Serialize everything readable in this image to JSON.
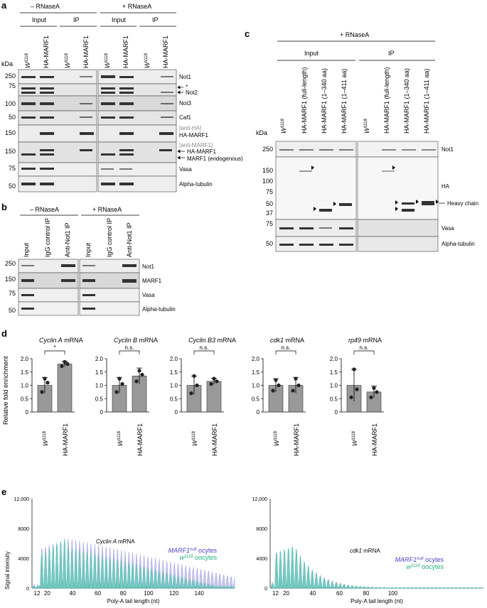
{
  "panels": {
    "a": "a",
    "b": "b",
    "c": "c",
    "d": "d",
    "e": "e"
  },
  "panel_a": {
    "minus_rnase": "– RNaseA",
    "plus_rnase": "+ RNaseA",
    "input": "Input",
    "ip": "IP",
    "lane_w": "W",
    "lane_w_sup": "1118",
    "lane_ha": "HA-MARF1",
    "kda": "kDa",
    "mw": [
      "250",
      "75",
      "100",
      "50",
      "150",
      "150",
      "75",
      "50"
    ],
    "rows": [
      "Not1",
      "*",
      "Not2",
      "Not3",
      "Caf1",
      "[anti-HA]",
      "HA-MARF1",
      "[anti-MARF1]",
      "HA-MARF1",
      "MARF1 (endogenous)",
      "Vasa",
      "Alpha-tubulin"
    ]
  },
  "panel_b": {
    "minus_rnase": "– RNaseA",
    "plus_rnase": "+ RNaseA",
    "lanes": [
      "Input",
      "IgG control IP",
      "Anti-Not1 IP"
    ],
    "mw": [
      "250",
      "150",
      "75",
      "50"
    ],
    "rows": [
      "Not1",
      "MARF1",
      "Vasa",
      "Alpha-tubulin"
    ]
  },
  "panel_c": {
    "plus_rnase": "+ RNaseA",
    "input": "Input",
    "ip": "IP",
    "lanes": [
      "W",
      "HA-MARF1 (full-length)",
      "HA-MARF1 (1–340 aa)",
      "HA-MARF1 (1–411 aa)"
    ],
    "lane_sup": "1118",
    "kda": "kDa",
    "mw": [
      "250",
      "150",
      "100",
      "75",
      "50",
      "37",
      "75",
      "50"
    ],
    "rows": [
      "Not1",
      "HA",
      "Heavy chain",
      "Vasa",
      "Alpha-tubulin"
    ]
  },
  "panel_d": {
    "ylabel": "Relative fold enrichment",
    "mrna": "mRNA",
    "x_w": "W",
    "x_sup": "1118",
    "x_ha": "HA-MARF1",
    "yticks": [
      "0",
      "0.5",
      "1.0",
      "1.5",
      "2.0"
    ],
    "chart_data": [
      {
        "type": "bar",
        "title": "Cyclin A",
        "categories": [
          "W1118",
          "HA-MARF1"
        ],
        "values": [
          1.0,
          1.8
        ],
        "errors": [
          0.3,
          0.1
        ],
        "points": [
          [
            0.75,
            1.1,
            1.25
          ],
          [
            1.72,
            1.8,
            1.88
          ]
        ],
        "significance": "*",
        "ylim": [
          0,
          2.0
        ]
      },
      {
        "type": "bar",
        "title": "Cyclin B",
        "categories": [
          "W1118",
          "HA-MARF1"
        ],
        "values": [
          1.0,
          1.35
        ],
        "errors": [
          0.3,
          0.3
        ],
        "points": [
          [
            0.75,
            1.05,
            1.25
          ],
          [
            1.15,
            1.4,
            1.55
          ]
        ],
        "significance": "n.s.",
        "ylim": [
          0,
          2.0
        ]
      },
      {
        "type": "bar",
        "title": "Cyclin B3",
        "categories": [
          "W1118",
          "HA-MARF1"
        ],
        "values": [
          1.0,
          1.15
        ],
        "errors": [
          0.35,
          0.12
        ],
        "points": [
          [
            0.7,
            1.0,
            1.35
          ],
          [
            1.05,
            1.15,
            1.25
          ]
        ],
        "significance": "n.s.",
        "ylim": [
          0,
          2.0
        ]
      },
      {
        "type": "bar",
        "title": "cdk1",
        "categories": [
          "W1118",
          "HA-MARF1"
        ],
        "values": [
          1.0,
          1.0
        ],
        "errors": [
          0.25,
          0.3
        ],
        "points": [
          [
            0.8,
            1.0,
            1.2
          ],
          [
            0.8,
            1.0,
            1.25
          ]
        ],
        "significance": "n.s.",
        "ylim": [
          0,
          2.0
        ]
      },
      {
        "type": "bar",
        "title": "rp49",
        "categories": [
          "W1118",
          "HA-MARF1"
        ],
        "values": [
          1.0,
          0.75
        ],
        "errors": [
          0.6,
          0.22
        ],
        "points": [
          [
            0.55,
            0.85,
            1.6
          ],
          [
            0.55,
            0.75,
            0.9
          ]
        ],
        "significance": "n.s.",
        "ylim": [
          0,
          2.0
        ]
      }
    ]
  },
  "panel_e": {
    "ylabel": "Signal intensity",
    "xlabel": "Poly-A tail length (nt)",
    "yticks": [
      "0",
      "4000",
      "8000",
      "12,000"
    ],
    "xticks_left": [
      "12",
      "20",
      "40",
      "60",
      "80",
      "100",
      "120",
      "140"
    ],
    "xticks_right": [
      "12",
      "20",
      "40",
      "60",
      "80",
      "100"
    ],
    "legend_marf": "MARF1",
    "legend_null": "null",
    "legend_ocytes": " ocytes",
    "legend_w": "w",
    "legend_sup": "1118",
    "legend_oocytes": " oocytes",
    "chart_data": [
      {
        "type": "area",
        "title": "Cyclin A",
        "title_suffix": "mRNA",
        "series": [
          {
            "name": "MARF1null ocytes",
            "color": "#8a86d8"
          },
          {
            "name": "w1118 oocytes",
            "color": "#35c9a0"
          }
        ],
        "ylim": [
          0,
          12000
        ],
        "xlim": [
          8,
          168
        ]
      },
      {
        "type": "area",
        "title": "cdk1",
        "title_suffix": "mRNA",
        "series": [
          {
            "name": "MARF1null ocytes",
            "color": "#8a86d8"
          },
          {
            "name": "w1118 oocytes",
            "color": "#35c9a0"
          }
        ],
        "ylim": [
          0,
          12000
        ],
        "xlim": [
          8,
          168
        ]
      }
    ]
  }
}
